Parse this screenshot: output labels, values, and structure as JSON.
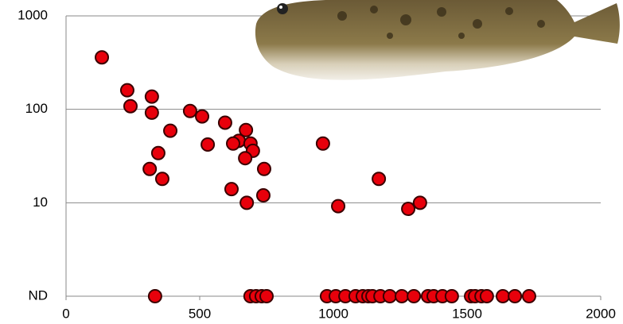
{
  "chart_data": {
    "type": "scatter",
    "log_y": true,
    "grid": true,
    "xlim": [
      0,
      2000
    ],
    "xticks": [
      0,
      500,
      1000,
      1500,
      2000
    ],
    "ylim": [
      1,
      1000
    ],
    "yticks": [
      {
        "value": 1,
        "label": "ND"
      },
      10,
      100,
      1000
    ],
    "series": [
      {
        "color": "#e8000b",
        "x": [
          134,
          229,
          241,
          321,
          321,
          464,
          509,
          390,
          595,
          673,
          646,
          625,
          690,
          530,
          699,
          345,
          670,
          741,
          313,
          360,
          619,
          738,
          676,
          961,
          1170,
          1018,
          1324,
          1280
        ],
        "values": [
          360,
          160,
          108,
          137,
          92,
          96,
          84,
          59,
          72,
          60,
          46,
          43,
          43,
          42,
          36,
          34,
          30,
          23,
          23,
          18,
          14,
          12,
          10,
          43,
          18,
          9.2,
          10,
          8.6
        ]
      },
      {
        "color": "#e8000b",
        "x": [
          333,
          690,
          711,
          732,
          750,
          976,
          1009,
          1045,
          1083,
          1110,
          1131,
          1146,
          1176,
          1211,
          1256,
          1301,
          1354,
          1375,
          1408,
          1443,
          1515,
          1530,
          1554,
          1574,
          1634,
          1679,
          1732
        ],
        "values": [
          1,
          1,
          1,
          1,
          1,
          1,
          1,
          1,
          1,
          1,
          1,
          1,
          1,
          1,
          1,
          1,
          1,
          1,
          1,
          1,
          1,
          1,
          1,
          1,
          1,
          1,
          1
        ]
      }
    ]
  }
}
